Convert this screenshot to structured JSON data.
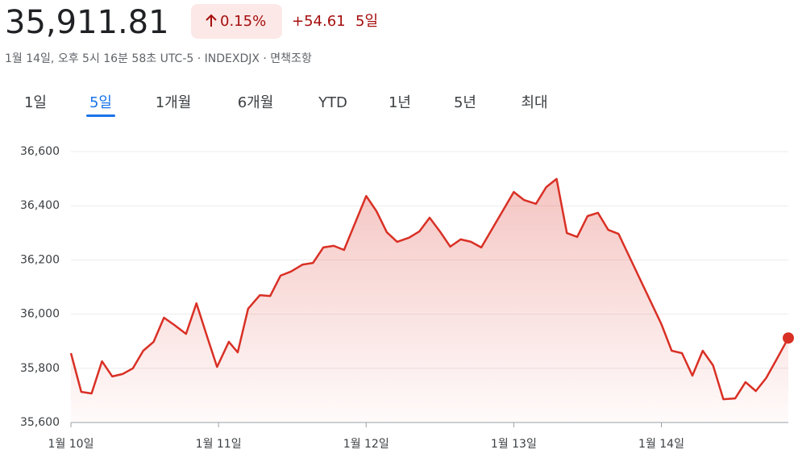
{
  "header": {
    "price": "35,911.81",
    "change_pct": "0.15%",
    "change_abs": "+54.61",
    "period": "5일",
    "meta": "1월 14일, 오후 5시 16분 58초 UTC-5 · INDEXDJX · 면책조항"
  },
  "tabs": [
    "1일",
    "5일",
    "1개월",
    "6개월",
    "YTD",
    "1년",
    "5년",
    "최대"
  ],
  "active_tab": 1,
  "chart_data": {
    "type": "line",
    "color": "#d93025",
    "grid": true,
    "x": [
      0,
      0.07,
      0.14,
      0.21,
      0.28,
      0.35,
      0.42,
      0.49,
      0.56,
      0.63,
      0.7,
      0.78,
      0.85,
      0.92,
      0.99,
      1.07,
      1.13,
      1.2,
      1.28,
      1.35,
      1.42,
      1.49,
      1.57,
      1.64,
      1.71,
      1.78,
      1.85,
      2.0,
      2.07,
      2.14,
      2.21,
      2.29,
      2.36,
      2.43,
      2.5,
      2.57,
      2.64,
      2.71,
      2.78,
      3.0,
      3.07,
      3.15,
      3.22,
      3.29,
      3.36,
      3.43,
      3.5,
      3.57,
      3.64,
      3.71,
      4.0,
      4.07,
      4.14,
      4.21,
      4.28,
      4.35,
      4.42,
      4.5,
      4.57,
      4.64,
      4.71,
      4.78,
      4.86
    ],
    "values": [
      35856,
      35713,
      35707,
      35826,
      35770,
      35779,
      35800,
      35865,
      35898,
      35987,
      35960,
      35927,
      36040,
      35921,
      35805,
      35898,
      35859,
      36020,
      36070,
      36067,
      36142,
      36157,
      36183,
      36189,
      36246,
      36252,
      36237,
      36436,
      36380,
      36302,
      36267,
      36282,
      36305,
      36356,
      36305,
      36249,
      36276,
      36267,
      36246,
      36451,
      36421,
      36407,
      36469,
      36499,
      36299,
      36285,
      36362,
      36374,
      36311,
      36296,
      35963,
      35865,
      35856,
      35773,
      35865,
      35811,
      35686,
      35689,
      35749,
      35716,
      35764,
      35832,
      35911.81
    ],
    "xlim": [
      0,
      4.86
    ],
    "xticks": [
      {
        "value": 0,
        "label": "1월 10일"
      },
      {
        "value": 1,
        "label": "1월 11일"
      },
      {
        "value": 2,
        "label": "1월 12일"
      },
      {
        "value": 3,
        "label": "1월 13일"
      },
      {
        "value": 4,
        "label": "1월 14일"
      }
    ],
    "ylim": [
      35600,
      36600
    ],
    "yticks": [
      {
        "value": 35600,
        "label": "35,600"
      },
      {
        "value": 35800,
        "label": "35,800"
      },
      {
        "value": 36000,
        "label": "36,000"
      },
      {
        "value": 36200,
        "label": "36,200"
      },
      {
        "value": 36400,
        "label": "36,400"
      },
      {
        "value": 36600,
        "label": "36,600"
      }
    ]
  }
}
